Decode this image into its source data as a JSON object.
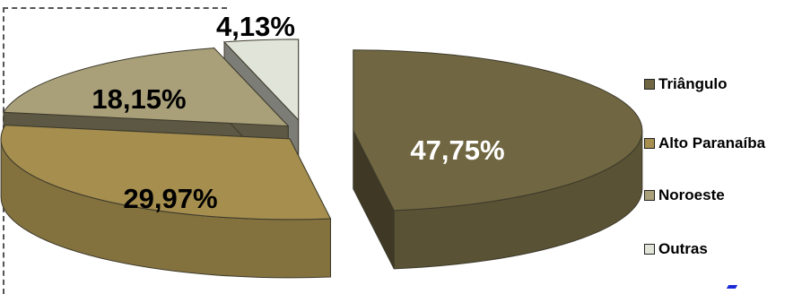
{
  "chart_data": {
    "type": "pie",
    "title": "",
    "categories": [
      "Triângulo",
      "Alto Paranaíba",
      "Noroeste",
      "Outras"
    ],
    "values": [
      47.75,
      29.97,
      18.15,
      4.13
    ],
    "data_labels": [
      "47,75%",
      "29,97%",
      "18,15%",
      "4,13%"
    ],
    "colors": [
      "#706641",
      "#A58E4E",
      "#A9A07A",
      "#E1E4D8"
    ],
    "exploded": true,
    "three_d": true,
    "legend_position": "right",
    "grid": false
  },
  "legend": {
    "items": [
      {
        "label": "Triângulo",
        "color": "#706641"
      },
      {
        "label": "Alto Paranaíba",
        "color": "#A58E4E"
      },
      {
        "label": "Noroeste",
        "color": "#A9A07A"
      },
      {
        "label": "Outras",
        "color": "#E1E4D8"
      }
    ]
  }
}
